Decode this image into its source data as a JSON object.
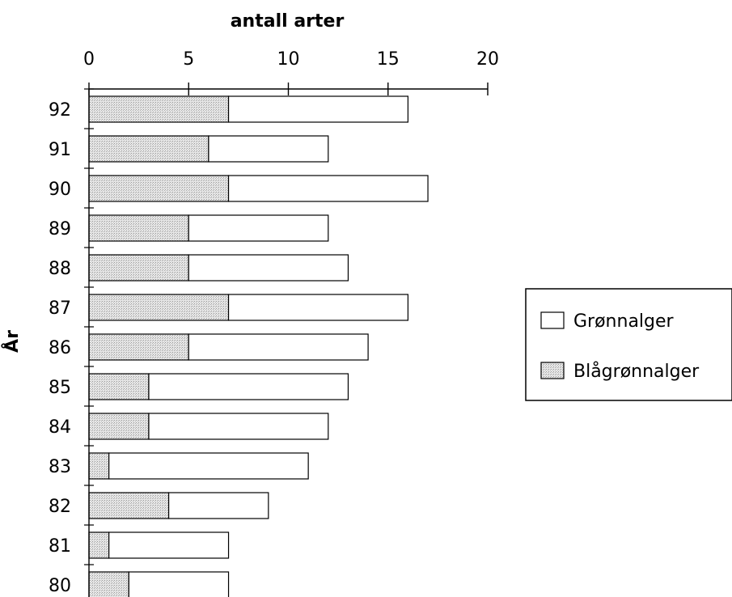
{
  "chart_data": {
    "type": "bar",
    "orientation": "horizontal",
    "stacked": true,
    "title": "antall arter",
    "xlabel": "antall arter",
    "ylabel": "År",
    "xlim": [
      0,
      20
    ],
    "xticks": [
      "0",
      "5",
      "10",
      "15",
      "20"
    ],
    "categories": [
      "92",
      "91",
      "90",
      "89",
      "88",
      "87",
      "86",
      "85",
      "84",
      "83",
      "82",
      "81",
      "80"
    ],
    "series": [
      {
        "name": "Blågrønnalger",
        "color": "#d9d9d9",
        "values": [
          7,
          6,
          7,
          5,
          5,
          7,
          5,
          3,
          3,
          1,
          4,
          1,
          2
        ]
      },
      {
        "name": "Grønnalger",
        "color": "#ffffff",
        "values": [
          9,
          6,
          10,
          7,
          8,
          9,
          9,
          10,
          9,
          10,
          5,
          6,
          5
        ]
      }
    ],
    "legend_position": "right",
    "grid": false
  }
}
